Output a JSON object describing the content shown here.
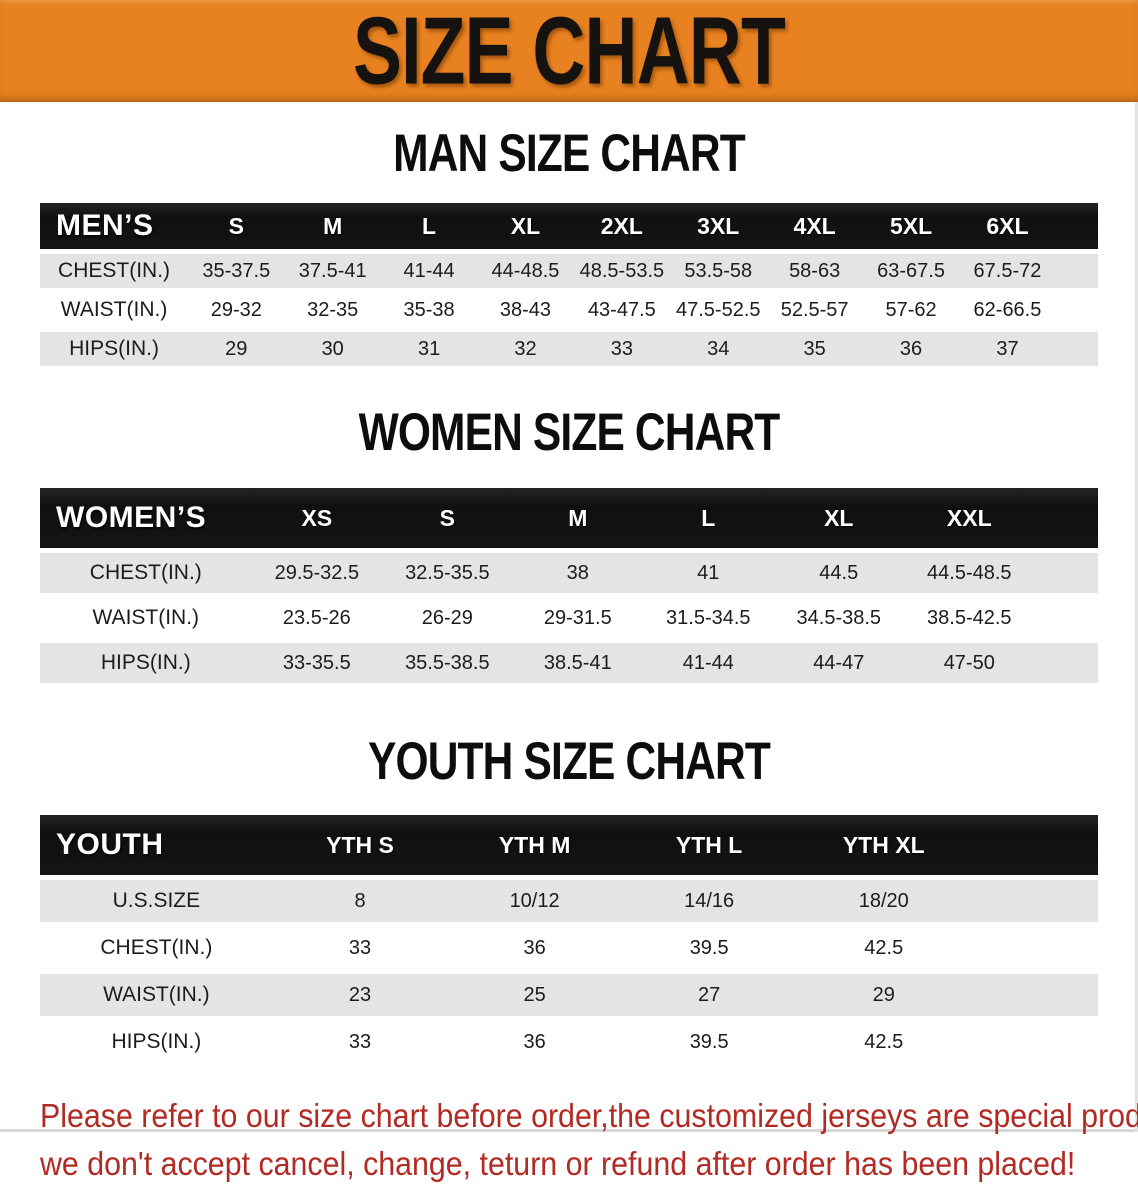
{
  "banner": {
    "title": "SIZE CHART",
    "bg_color": "#e8811f"
  },
  "sections": [
    {
      "heading": "MAN SIZE CHART",
      "corner_label": "MEN’S",
      "columns": [
        "S",
        "M",
        "L",
        "XL",
        "2XL",
        "3XL",
        "4XL",
        "5XL",
        "6XL"
      ],
      "rows": [
        {
          "label": "CHEST(IN.)",
          "values": [
            "35-37.5",
            "37.5-41",
            "41-44",
            "44-48.5",
            "48.5-53.5",
            "53.5-58",
            "58-63",
            "63-67.5",
            "67.5-72"
          ]
        },
        {
          "label": "WAIST(IN.)",
          "values": [
            "29-32",
            "32-35",
            "35-38",
            "38-43",
            "43-47.5",
            "47.5-52.5",
            "52.5-57",
            "57-62",
            "62-66.5"
          ]
        },
        {
          "label": "HIPS(IN.)",
          "values": [
            "29",
            "30",
            "31",
            "32",
            "33",
            "34",
            "35",
            "36",
            "37"
          ]
        }
      ]
    },
    {
      "heading": "WOMEN SIZE CHART",
      "corner_label": "WOMEN’S",
      "columns": [
        "XS",
        "S",
        "M",
        "L",
        "XL",
        "XXL"
      ],
      "rows": [
        {
          "label": "CHEST(IN.)",
          "values": [
            "29.5-32.5",
            "32.5-35.5",
            "38",
            "41",
            "44.5",
            "44.5-48.5"
          ]
        },
        {
          "label": "WAIST(IN.)",
          "values": [
            "23.5-26",
            "26-29",
            "29-31.5",
            "31.5-34.5",
            "34.5-38.5",
            "38.5-42.5"
          ]
        },
        {
          "label": "HIPS(IN.)",
          "values": [
            "33-35.5",
            "35.5-38.5",
            "38.5-41",
            "41-44",
            "44-47",
            "47-50"
          ]
        }
      ]
    },
    {
      "heading": "YOUTH SIZE CHART",
      "corner_label": "YOUTH",
      "columns": [
        "YTH S",
        "YTH M",
        "YTH L",
        "YTH XL"
      ],
      "rows": [
        {
          "label": "U.S.SIZE",
          "values": [
            "8",
            "10/12",
            "14/16",
            "18/20"
          ]
        },
        {
          "label": "CHEST(IN.)",
          "values": [
            "33",
            "36",
            "39.5",
            "42.5"
          ]
        },
        {
          "label": "WAIST(IN.)",
          "values": [
            "23",
            "25",
            "27",
            "29"
          ]
        },
        {
          "label": "HIPS(IN.)",
          "values": [
            "33",
            "36",
            "39.5",
            "42.5"
          ]
        }
      ]
    }
  ],
  "footer": {
    "line1": "Please refer to our size chart before order,the customized jerseys are special products,",
    "line2": "we don't accept cancel, change, teturn or refund after order has been placed!",
    "text_color": "#b22a24"
  }
}
